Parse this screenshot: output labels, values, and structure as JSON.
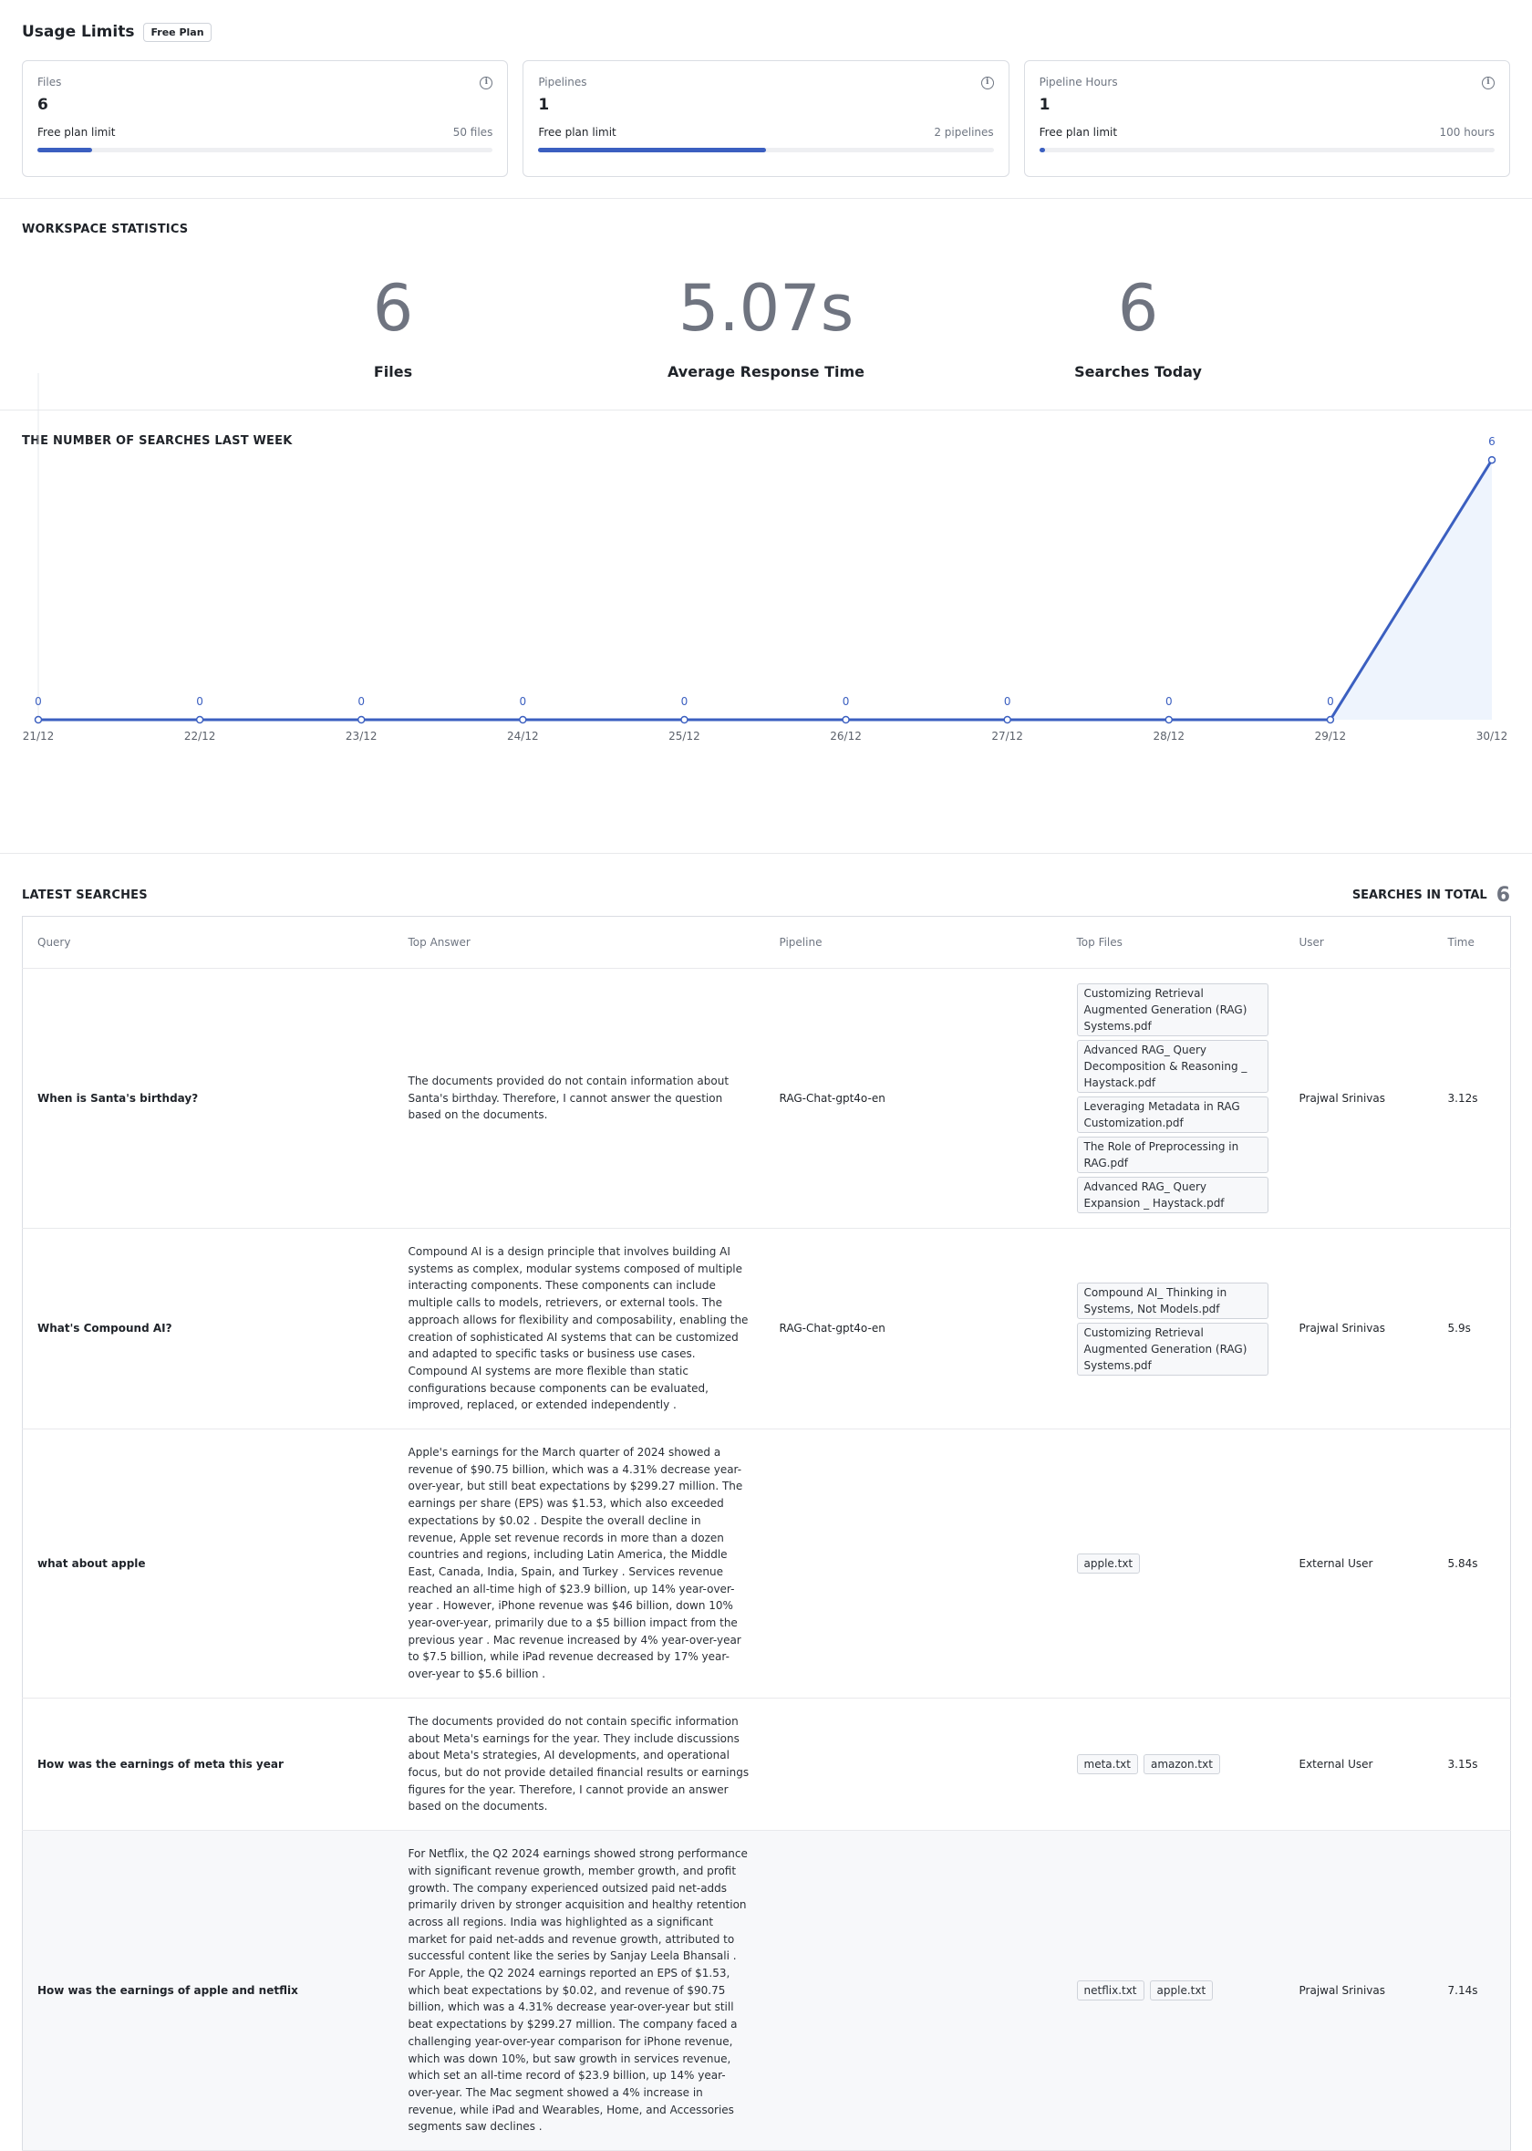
{
  "usage": {
    "title": "Usage Limits",
    "plan": "Free Plan",
    "cards": [
      {
        "label": "Files",
        "value": "6",
        "limit_label": "Free plan limit",
        "max": "50 files",
        "fraction": 0.12
      },
      {
        "label": "Pipelines",
        "value": "1",
        "limit_label": "Free plan limit",
        "max": "2 pipelines",
        "fraction": 0.5
      },
      {
        "label": "Pipeline Hours",
        "value": "1",
        "limit_label": "Free plan limit",
        "max": "100 hours",
        "fraction": 0.01
      }
    ]
  },
  "stats": {
    "title": "WORKSPACE STATISTICS",
    "items": [
      {
        "value": "6",
        "label": "Files"
      },
      {
        "value": "5.07s",
        "label": "Average Response Time"
      },
      {
        "value": "6",
        "label": "Searches Today"
      }
    ]
  },
  "chart_section": {
    "title": "THE NUMBER OF SEARCHES LAST WEEK"
  },
  "chart_data": {
    "type": "area",
    "categories": [
      "21/12",
      "22/12",
      "23/12",
      "24/12",
      "25/12",
      "26/12",
      "27/12",
      "28/12",
      "29/12",
      "30/12"
    ],
    "values": [
      0,
      0,
      0,
      0,
      0,
      0,
      0,
      0,
      0,
      6
    ],
    "data_labels": true,
    "ylim": [
      0,
      7.5
    ],
    "grid": false,
    "color": "#3b5fc0",
    "fill_color": "#eef4fd"
  },
  "latest": {
    "title": "LATEST SEARCHES",
    "total_label": "SEARCHES IN TOTAL",
    "total_value": "6",
    "columns": [
      "Query",
      "Top Answer",
      "Pipeline",
      "Top Files",
      "User",
      "Time"
    ],
    "rows": [
      {
        "query": "When is Santa's birthday?",
        "answer": "The documents provided do not contain information about Santa's birthday. Therefore, I cannot answer the question based on the documents.",
        "pipeline": "RAG-Chat-gpt4o-en",
        "files": [
          "Customizing Retrieval Augmented Generation (RAG) Systems.pdf",
          "Advanced RAG_ Query Decomposition & Reasoning _ Haystack.pdf",
          "Leveraging Metadata in RAG Customization.pdf",
          "The Role of Preprocessing in RAG.pdf",
          "Advanced RAG_ Query Expansion _ Haystack.pdf"
        ],
        "user": "Prajwal Srinivas",
        "time": "3.12s"
      },
      {
        "query": "What's Compound AI?",
        "answer": "Compound AI is a design principle that involves building AI systems as complex, modular systems composed of multiple interacting components. These components can include multiple calls to models, retrievers, or external tools. The approach allows for flexibility and composability, enabling the creation of sophisticated AI systems that can be customized and adapted to specific tasks or business use cases. Compound AI systems are more flexible than static configurations because components can be evaluated, improved, replaced, or extended independently .",
        "pipeline": "RAG-Chat-gpt4o-en",
        "files": [
          "Compound AI_ Thinking in Systems, Not Models.pdf",
          "Customizing Retrieval Augmented Generation (RAG) Systems.pdf"
        ],
        "user": "Prajwal Srinivas",
        "time": "5.9s"
      },
      {
        "query": "what about apple",
        "answer": "Apple's earnings for the March quarter of 2024 showed a revenue of $90.75 billion, which was a 4.31% decrease year-over-year, but still beat expectations by $299.27 million. The earnings per share (EPS) was $1.53, which also exceeded expectations by $0.02 . Despite the overall decline in revenue, Apple set revenue records in more than a dozen countries and regions, including Latin America, the Middle East, Canada, India, Spain, and Turkey . Services revenue reached an all-time high of $23.9 billion, up 14% year-over-year . However, iPhone revenue was $46 billion, down 10% year-over-year, primarily due to a $5 billion impact from the previous year . Mac revenue increased by 4% year-over-year to $7.5 billion, while iPad revenue decreased by 17% year-over-year to $5.6 billion .",
        "pipeline": "",
        "files": [
          "apple.txt"
        ],
        "user": "External User",
        "time": "5.84s"
      },
      {
        "query": "How was the earnings of meta this year",
        "answer": "The documents provided do not contain specific information about Meta's earnings for the year. They include discussions about Meta's strategies, AI developments, and operational focus, but do not provide detailed financial results or earnings figures for the year. Therefore, I cannot provide an answer based on the documents.",
        "pipeline": "",
        "files": [
          "meta.txt",
          "amazon.txt"
        ],
        "user": "External User",
        "time": "3.15s"
      },
      {
        "query": "How was the earnings of apple and netflix",
        "answer": "For Netflix, the Q2 2024 earnings showed strong performance with significant revenue growth, member growth, and profit growth. The company experienced outsized paid net-adds primarily driven by stronger acquisition and healthy retention across all regions. India was highlighted as a significant market for paid net-adds and revenue growth, attributed to successful content like the series by Sanjay Leela Bhansali . For Apple, the Q2 2024 earnings reported an EPS of $1.53, which beat expectations by $0.02, and revenue of $90.75 billion, which was a 4.31% decrease year-over-year but still beat expectations by $299.27 million. The company faced a challenging year-over-year comparison for iPhone revenue, which was down 10%, but saw growth in services revenue, which set an all-time record of $23.9 billion, up 14% year-over-year. The Mac segment showed a 4% increase in revenue, while iPad and Wearables, Home, and Accessories segments saw declines .",
        "pipeline": "",
        "files": [
          "netflix.txt",
          "apple.txt"
        ],
        "user": "Prajwal Srinivas",
        "time": "7.14s"
      }
    ]
  }
}
